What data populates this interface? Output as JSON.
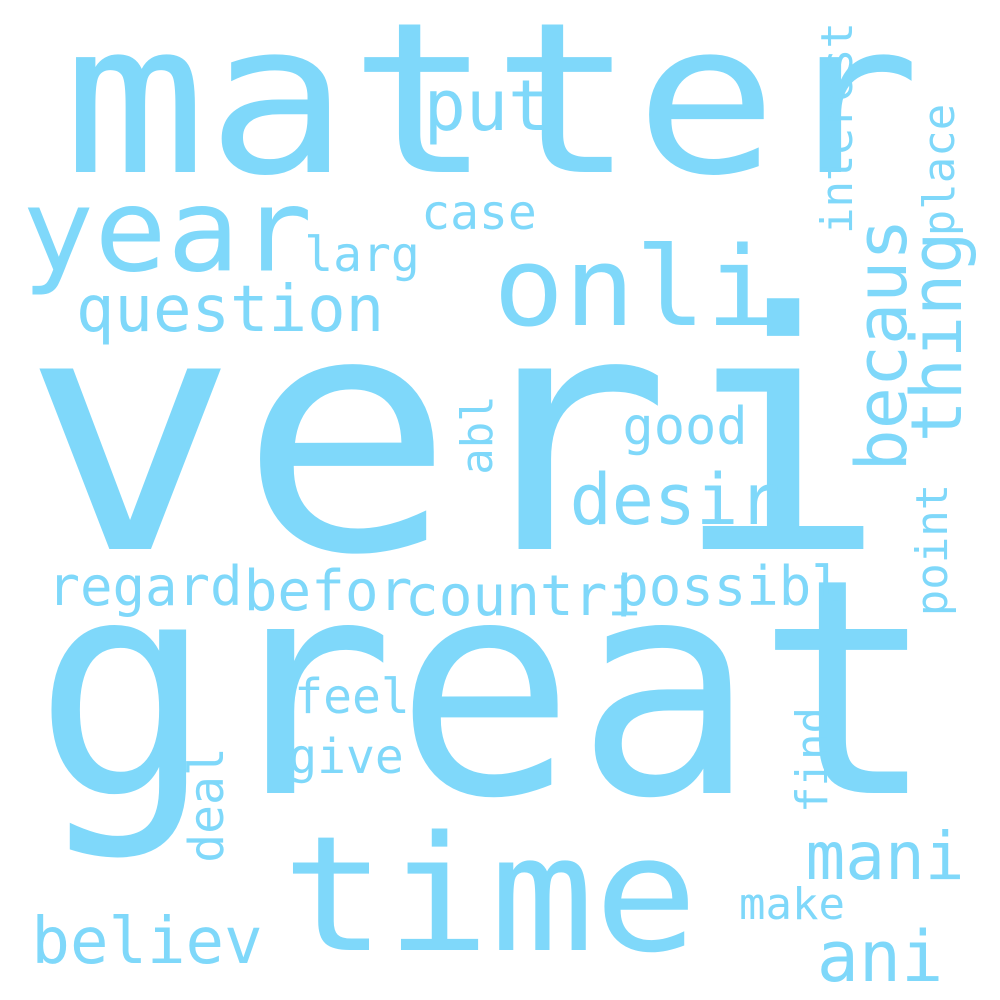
{
  "word_color": "#7fd8fa",
  "background_color": "#ffffff",
  "words": [
    {
      "text": "matter"
    },
    {
      "text": "veri"
    },
    {
      "text": "great"
    },
    {
      "text": "year"
    },
    {
      "text": "onli"
    },
    {
      "text": "time"
    },
    {
      "text": "question"
    },
    {
      "text": "put"
    },
    {
      "text": "case"
    },
    {
      "text": "larg"
    },
    {
      "text": "interest"
    },
    {
      "text": "place"
    },
    {
      "text": "thing"
    },
    {
      "text": "becaus"
    },
    {
      "text": "good"
    },
    {
      "text": "desir"
    },
    {
      "text": "abl"
    },
    {
      "text": "regard"
    },
    {
      "text": "befor"
    },
    {
      "text": "countri"
    },
    {
      "text": "possibl"
    },
    {
      "text": "point"
    },
    {
      "text": "feel"
    },
    {
      "text": "give"
    },
    {
      "text": "deal"
    },
    {
      "text": "find"
    },
    {
      "text": "mani"
    },
    {
      "text": "make"
    },
    {
      "text": "believ"
    },
    {
      "text": "ani"
    }
  ]
}
